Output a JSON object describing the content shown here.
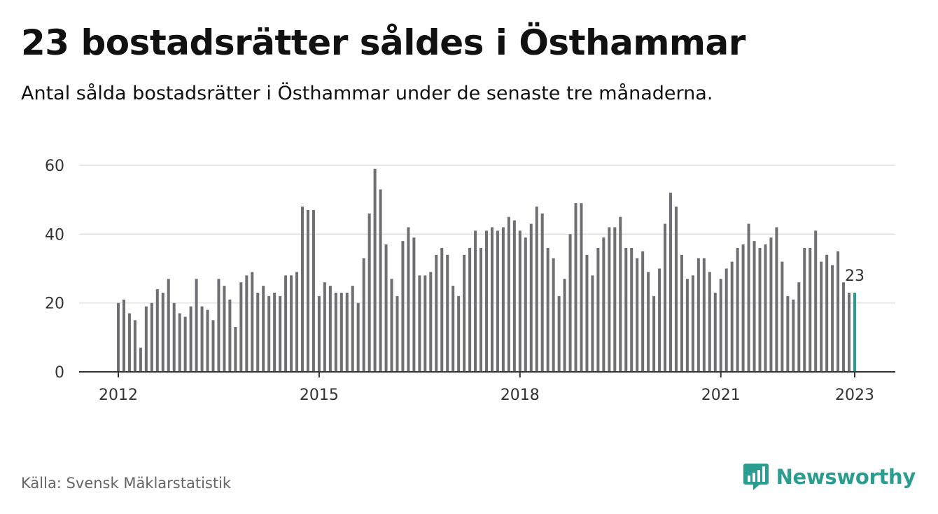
{
  "title": "23 bostadsrätter såldes i Östhammar",
  "subtitle": "Antal sålda bostadsrätter i Östhammar under de senaste tre månaderna.",
  "source": "Källa: Svensk Mäklarstatistik",
  "brand": {
    "name": "Newsworthy",
    "icon": "newsworthy-logo-icon",
    "color": "#2a9d8f"
  },
  "chart_data": {
    "type": "bar",
    "x_start": "2012-01",
    "x_unit": "month",
    "values": [
      20,
      21,
      17,
      15,
      7,
      19,
      20,
      24,
      23,
      27,
      20,
      17,
      16,
      19,
      27,
      19,
      18,
      15,
      27,
      25,
      21,
      13,
      26,
      28,
      29,
      23,
      25,
      22,
      23,
      22,
      28,
      28,
      29,
      48,
      47,
      47,
      22,
      26,
      25,
      23,
      23,
      23,
      25,
      20,
      33,
      46,
      59,
      53,
      37,
      27,
      22,
      38,
      42,
      39,
      28,
      28,
      29,
      34,
      36,
      34,
      25,
      22,
      34,
      36,
      41,
      36,
      41,
      42,
      41,
      42,
      45,
      44,
      41,
      39,
      43,
      48,
      46,
      36,
      33,
      22,
      27,
      40,
      49,
      49,
      34,
      28,
      36,
      39,
      42,
      42,
      45,
      36,
      36,
      33,
      35,
      29,
      22,
      30,
      43,
      52,
      48,
      34,
      27,
      28,
      33,
      33,
      29,
      23,
      27,
      30,
      32,
      36,
      37,
      43,
      38,
      36,
      37,
      39,
      42,
      32,
      22,
      21,
      26,
      36,
      36,
      41,
      32,
      34,
      31,
      35,
      26,
      23,
      23
    ],
    "ylim": [
      0,
      60
    ],
    "yticks": [
      "0",
      "20",
      "40",
      "60"
    ],
    "xticks": [
      "2012",
      "2015",
      "2018",
      "2021",
      "2023"
    ],
    "highlight_label": "23",
    "colors": {
      "bar": "#6e6e73",
      "highlight": "#2a9d8f",
      "grid": "#dddddd",
      "axis": "#333333"
    },
    "grid": true,
    "legend": "none"
  }
}
